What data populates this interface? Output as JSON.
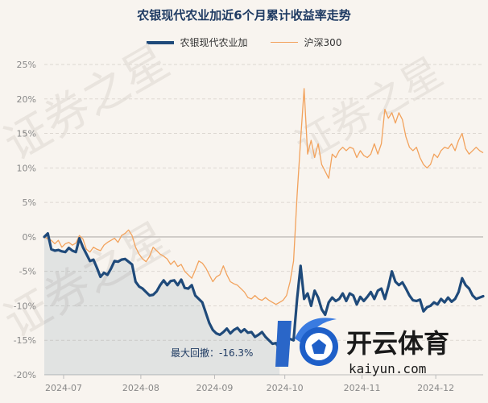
{
  "chart_data": {
    "type": "line",
    "title": "农银现代农业加近6个月累计收益率走势",
    "series": [
      {
        "name": "农银现代农业加",
        "color": "#1f4a7a",
        "values": [
          0,
          0.5,
          -1.8,
          -2.0,
          -1.9,
          -2.1,
          -2.2,
          -1.6,
          -2.0,
          -2.2,
          -0.2,
          -1.5,
          -2.5,
          -3.5,
          -3.3,
          -4.5,
          -5.8,
          -5.2,
          -5.5,
          -4.6,
          -3.5,
          -3.6,
          -3.3,
          -3.2,
          -3.6,
          -4.0,
          -6.5,
          -7.2,
          -7.5,
          -8.0,
          -8.5,
          -8.4,
          -7.9,
          -7.0,
          -6.3,
          -7.0,
          -6.4,
          -6.3,
          -7.0,
          -6.2,
          -7.4,
          -7.5,
          -7.0,
          -8.5,
          -9.0,
          -9.5,
          -11.0,
          -12.5,
          -13.5,
          -14.0,
          -14.2,
          -13.8,
          -13.3,
          -14.0,
          -13.5,
          -13.2,
          -13.8,
          -13.4,
          -13.9,
          -13.8,
          -14.5,
          -14.2,
          -13.8,
          -14.5,
          -15.0,
          -15.5,
          -15.4,
          -16.3,
          -15.6,
          -15.1,
          -14.8,
          -15.0,
          -9.0,
          -4.2,
          -9.0,
          -8.2,
          -10.0,
          -7.8,
          -8.8,
          -10.5,
          -11.3,
          -9.5,
          -8.8,
          -9.3,
          -9.0,
          -8.2,
          -9.3,
          -8.2,
          -8.5,
          -9.8,
          -8.7,
          -9.3,
          -8.7,
          -8.0,
          -9.0,
          -7.8,
          -7.5,
          -9.0,
          -7.2,
          -5.0,
          -6.5,
          -7.0,
          -6.6,
          -7.5,
          -8.5,
          -9.2,
          -9.3,
          -9.1,
          -10.8,
          -10.2,
          -10.0,
          -9.5,
          -9.8,
          -9.0,
          -9.5,
          -8.8,
          -9.4,
          -9.0,
          -8.0,
          -6.0,
          -7.0,
          -7.5,
          -8.5,
          -9.0,
          -8.8,
          -8.6
        ]
      },
      {
        "name": "沪深300",
        "color": "#f2a25c",
        "values": [
          0,
          -0.3,
          -0.5,
          -1.0,
          -0.5,
          -1.5,
          -1.0,
          -0.8,
          -1.2,
          -0.9,
          0.2,
          -0.3,
          -1.8,
          -2.2,
          -1.5,
          -1.8,
          -2.0,
          -1.2,
          -0.8,
          -0.5,
          -0.2,
          -0.8,
          0.2,
          0.5,
          1.0,
          0.2,
          -1.5,
          -2.5,
          -3.2,
          -3.6,
          -2.8,
          -1.5,
          -2.0,
          -2.5,
          -2.8,
          -3.2,
          -4.0,
          -3.5,
          -4.3,
          -4.0,
          -5.0,
          -5.5,
          -6.0,
          -4.8,
          -3.5,
          -3.8,
          -4.5,
          -5.5,
          -6.5,
          -5.8,
          -5.5,
          -4.2,
          -5.5,
          -6.5,
          -6.8,
          -7.0,
          -7.5,
          -8.0,
          -8.8,
          -9.0,
          -8.5,
          -9.0,
          -9.2,
          -8.8,
          -9.2,
          -9.5,
          -9.8,
          -9.5,
          -9.2,
          -8.5,
          -6.5,
          -3.5,
          6.0,
          14.0,
          21.5,
          12.0,
          14.0,
          11.5,
          13.5,
          10.5,
          9.5,
          8.5,
          12.0,
          11.5,
          12.5,
          13.0,
          12.5,
          13.0,
          12.8,
          11.5,
          12.5,
          11.8,
          11.5,
          12.0,
          13.5,
          12.0,
          13.5,
          18.5,
          17.2,
          18.0,
          16.5,
          18.0,
          17.0,
          14.5,
          13.0,
          12.5,
          13.0,
          11.5,
          10.5,
          10.0,
          10.5,
          12.0,
          11.5,
          12.5,
          13.0,
          12.8,
          13.5,
          12.5,
          14.0,
          15.0,
          12.8,
          12.0,
          12.5,
          13.0,
          12.5,
          12.2
        ]
      }
    ],
    "x_labels": [
      "2024-07",
      "2024-08",
      "2024-09",
      "2024-10",
      "2024-11",
      "2024-12"
    ],
    "x_label_positions": [
      5.5,
      27.5,
      48.5,
      68.5,
      90.5,
      111.5
    ],
    "y_ticks": [
      25,
      20,
      15,
      10,
      5,
      0,
      -5,
      -10,
      -15,
      -20
    ],
    "y_tick_labels": [
      "25%",
      "20%",
      "15%",
      "10%",
      "5%",
      "0%",
      "-5%",
      "-10%",
      "-15%",
      "-20%"
    ],
    "ylim": [
      -20,
      25
    ],
    "max_drawdown": {
      "label": "最大回撤：-16.3%",
      "value": -16.3,
      "index": 67
    },
    "grid": true,
    "legend_position": "top-center"
  },
  "watermark": {
    "text": "证券之星"
  },
  "logo": {
    "main_text": "开云体育",
    "sub_text": "kaiyun.com"
  }
}
